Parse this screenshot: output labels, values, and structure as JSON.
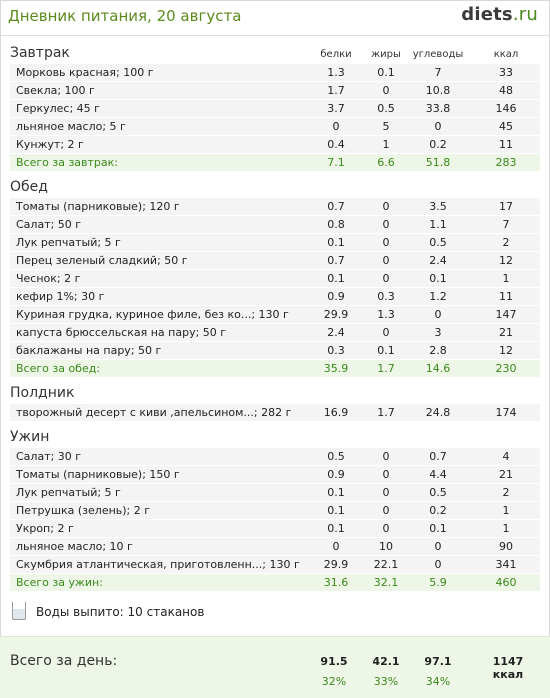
{
  "header": {
    "title": "Дневник питания, 20 августа",
    "logo_main": "diets",
    "logo_tld": ".ru"
  },
  "columns": [
    "белки",
    "жиры",
    "углеводы",
    "ккал"
  ],
  "meals": [
    {
      "name": "Завтрак",
      "items": [
        {
          "name": "Морковь красная; 100 г",
          "p": "1.3",
          "f": "0.1",
          "c": "7",
          "k": "33"
        },
        {
          "name": "Свекла; 100 г",
          "p": "1.7",
          "f": "0",
          "c": "10.8",
          "k": "48"
        },
        {
          "name": "Геркулес; 45 г",
          "p": "3.7",
          "f": "0.5",
          "c": "33.8",
          "k": "146"
        },
        {
          "name": "льняное масло; 5 г",
          "p": "0",
          "f": "5",
          "c": "0",
          "k": "45"
        },
        {
          "name": "Кунжут; 2 г",
          "p": "0.4",
          "f": "1",
          "c": "0.2",
          "k": "11"
        }
      ],
      "total": {
        "name": "Всего за завтрак:",
        "p": "7.1",
        "f": "6.6",
        "c": "51.8",
        "k": "283"
      }
    },
    {
      "name": "Обед",
      "items": [
        {
          "name": "Томаты (парниковые); 120 г",
          "p": "0.7",
          "f": "0",
          "c": "3.5",
          "k": "17"
        },
        {
          "name": "Салат; 50 г",
          "p": "0.8",
          "f": "0",
          "c": "1.1",
          "k": "7"
        },
        {
          "name": "Лук репчатый; 5 г",
          "p": "0.1",
          "f": "0",
          "c": "0.5",
          "k": "2"
        },
        {
          "name": "Перец зеленый сладкий; 50 г",
          "p": "0.7",
          "f": "0",
          "c": "2.4",
          "k": "12"
        },
        {
          "name": "Чеснок; 2 г",
          "p": "0.1",
          "f": "0",
          "c": "0.1",
          "k": "1"
        },
        {
          "name": "кефир 1%; 30 г",
          "p": "0.9",
          "f": "0.3",
          "c": "1.2",
          "k": "11"
        },
        {
          "name": "Куриная грудка, куриное филе, без ко...; 130 г",
          "p": "29.9",
          "f": "1.3",
          "c": "0",
          "k": "147"
        },
        {
          "name": "капуста брюссельская на пару; 50 г",
          "p": "2.4",
          "f": "0",
          "c": "3",
          "k": "21"
        },
        {
          "name": "баклажаны на пару; 50 г",
          "p": "0.3",
          "f": "0.1",
          "c": "2.8",
          "k": "12"
        }
      ],
      "total": {
        "name": "Всего за обед:",
        "p": "35.9",
        "f": "1.7",
        "c": "14.6",
        "k": "230"
      }
    },
    {
      "name": "Полдник",
      "items": [
        {
          "name": "творожный десерт  с киви ,апельсином...; 282 г",
          "p": "16.9",
          "f": "1.7",
          "c": "24.8",
          "k": "174"
        }
      ],
      "total": null
    },
    {
      "name": "Ужин",
      "items": [
        {
          "name": "Салат; 30 г",
          "p": "0.5",
          "f": "0",
          "c": "0.7",
          "k": "4"
        },
        {
          "name": "Томаты (парниковые); 150 г",
          "p": "0.9",
          "f": "0",
          "c": "4.4",
          "k": "21"
        },
        {
          "name": "Лук репчатый; 5 г",
          "p": "0.1",
          "f": "0",
          "c": "0.5",
          "k": "2"
        },
        {
          "name": "Петрушка (зелень); 2 г",
          "p": "0.1",
          "f": "0",
          "c": "0.2",
          "k": "1"
        },
        {
          "name": "Укроп; 2 г",
          "p": "0.1",
          "f": "0",
          "c": "0.1",
          "k": "1"
        },
        {
          "name": "льняное масло; 10 г",
          "p": "0",
          "f": "10",
          "c": "0",
          "k": "90"
        },
        {
          "name": "Скумбрия атлантическая, приготовленн...; 130 г",
          "p": "29.9",
          "f": "22.1",
          "c": "0",
          "k": "341"
        }
      ],
      "total": {
        "name": "Всего за ужин:",
        "p": "31.6",
        "f": "32.1",
        "c": "5.9",
        "k": "460"
      }
    }
  ],
  "water": {
    "icon": "glass-icon",
    "text": "Воды выпито: 10 стаканов"
  },
  "day_total": {
    "label": "Всего за день:",
    "p": "91.5",
    "f": "42.1",
    "c": "97.1",
    "k": "1147 ккал",
    "p_pct": "32%",
    "f_pct": "33%",
    "c_pct": "34%"
  },
  "colors": {
    "accent": "#5b8a1e",
    "total_text": "#3a8a1a",
    "total_bg": "#eef6e8",
    "row_bg": "#f4f4f4"
  }
}
